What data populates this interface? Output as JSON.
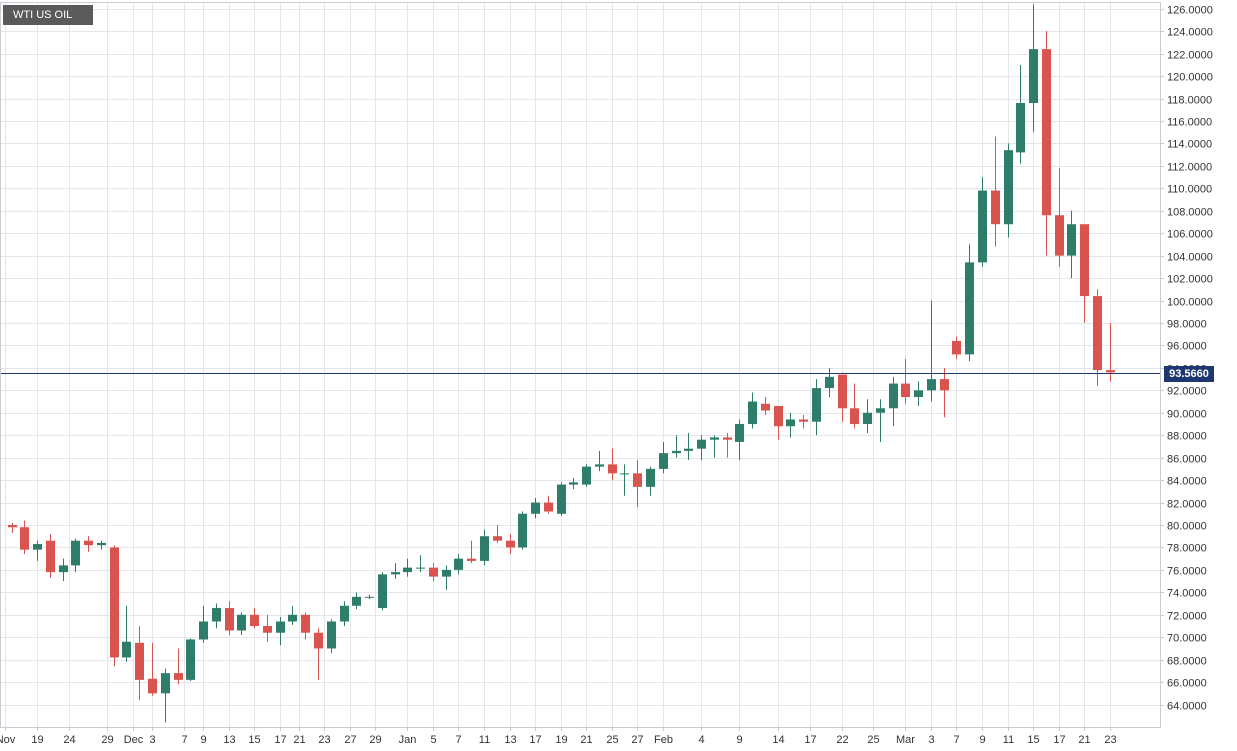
{
  "instrument": "WTI US OIL",
  "current_price": "93.5660",
  "colors": {
    "up": "#2e7d6b",
    "down": "#d9534f",
    "grid": "#e4e6eb",
    "price_line": "#1f3770",
    "axis": "#c8ccd4"
  },
  "chart_data": {
    "type": "candlestick",
    "title": "WTI US OIL",
    "ylim": [
      62.0,
      126.6
    ],
    "yticks": [
      "64.0000",
      "66.0000",
      "68.0000",
      "70.0000",
      "72.0000",
      "74.0000",
      "76.0000",
      "78.0000",
      "80.0000",
      "82.0000",
      "84.0000",
      "86.0000",
      "88.0000",
      "90.0000",
      "92.0000",
      "94.0000",
      "96.0000",
      "98.0000",
      "100.0000",
      "102.0000",
      "104.0000",
      "106.0000",
      "108.0000",
      "110.0000",
      "112.0000",
      "114.0000",
      "116.0000",
      "118.0000",
      "120.0000",
      "122.0000",
      "124.0000",
      "126.0000"
    ],
    "xticks": [
      "Nov",
      "19",
      "24",
      "29",
      "Dec",
      "3",
      "7",
      "9",
      "13",
      "15",
      "17",
      "21",
      "23",
      "27",
      "29",
      "Jan",
      "5",
      "7",
      "11",
      "13",
      "17",
      "19",
      "21",
      "25",
      "27",
      "Feb",
      "4",
      "9",
      "14",
      "17",
      "22",
      "25",
      "Mar",
      "3",
      "7",
      "9",
      "11",
      "15",
      "17",
      "21",
      "23"
    ],
    "xtick_index": [
      -0.5,
      2,
      4.5,
      7.5,
      9.5,
      11,
      13.5,
      15,
      17,
      19,
      21,
      22.5,
      24.5,
      26.5,
      28.5,
      31,
      33,
      35,
      37,
      39,
      41,
      43,
      45,
      47,
      49,
      51,
      54,
      57,
      60,
      62.5,
      65,
      67.5,
      70,
      72,
      74,
      76,
      78,
      80,
      82,
      84,
      86
    ],
    "last_price": 93.566,
    "candles": [
      {
        "o": 80.0,
        "h": 80.2,
        "l": 79.3,
        "c": 79.8
      },
      {
        "o": 79.8,
        "h": 80.4,
        "l": 77.4,
        "c": 77.8
      },
      {
        "o": 77.8,
        "h": 78.6,
        "l": 76.8,
        "c": 78.3
      },
      {
        "o": 78.6,
        "h": 79.2,
        "l": 75.3,
        "c": 75.8
      },
      {
        "o": 75.8,
        "h": 77.0,
        "l": 75.0,
        "c": 76.4
      },
      {
        "o": 76.4,
        "h": 78.8,
        "l": 75.8,
        "c": 78.6
      },
      {
        "o": 78.6,
        "h": 79.0,
        "l": 77.6,
        "c": 78.2
      },
      {
        "o": 78.2,
        "h": 78.6,
        "l": 77.8,
        "c": 78.4
      },
      {
        "o": 78.0,
        "h": 78.2,
        "l": 67.4,
        "c": 68.2
      },
      {
        "o": 68.2,
        "h": 72.8,
        "l": 67.8,
        "c": 69.6
      },
      {
        "o": 69.5,
        "h": 71.0,
        "l": 64.4,
        "c": 66.2
      },
      {
        "o": 66.3,
        "h": 69.5,
        "l": 64.8,
        "c": 65.0
      },
      {
        "o": 65.0,
        "h": 67.2,
        "l": 62.4,
        "c": 66.8
      },
      {
        "o": 66.8,
        "h": 69.0,
        "l": 65.8,
        "c": 66.2
      },
      {
        "o": 66.2,
        "h": 69.9,
        "l": 66.1,
        "c": 69.8
      },
      {
        "o": 69.8,
        "h": 72.8,
        "l": 69.5,
        "c": 71.4
      },
      {
        "o": 71.4,
        "h": 73.0,
        "l": 70.8,
        "c": 72.6
      },
      {
        "o": 72.6,
        "h": 73.2,
        "l": 70.2,
        "c": 70.6
      },
      {
        "o": 70.6,
        "h": 72.2,
        "l": 70.2,
        "c": 72.0
      },
      {
        "o": 72.0,
        "h": 72.6,
        "l": 70.8,
        "c": 71.0
      },
      {
        "o": 71.0,
        "h": 72.0,
        "l": 69.6,
        "c": 70.4
      },
      {
        "o": 70.4,
        "h": 71.8,
        "l": 69.3,
        "c": 71.4
      },
      {
        "o": 71.4,
        "h": 72.8,
        "l": 71.1,
        "c": 72.0
      },
      {
        "o": 72.0,
        "h": 72.2,
        "l": 69.8,
        "c": 70.4
      },
      {
        "o": 70.4,
        "h": 70.8,
        "l": 66.2,
        "c": 69.0
      },
      {
        "o": 69.0,
        "h": 71.6,
        "l": 68.6,
        "c": 71.4
      },
      {
        "o": 71.4,
        "h": 73.2,
        "l": 71.0,
        "c": 72.8
      },
      {
        "o": 72.8,
        "h": 74.0,
        "l": 72.5,
        "c": 73.6
      },
      {
        "o": 73.6,
        "h": 73.8,
        "l": 73.4,
        "c": 73.6
      },
      {
        "o": 72.6,
        "h": 75.8,
        "l": 72.4,
        "c": 75.6
      },
      {
        "o": 75.6,
        "h": 76.6,
        "l": 75.2,
        "c": 75.8
      },
      {
        "o": 75.8,
        "h": 77.0,
        "l": 75.4,
        "c": 76.2
      },
      {
        "o": 76.2,
        "h": 77.3,
        "l": 75.8,
        "c": 76.2
      },
      {
        "o": 76.2,
        "h": 76.6,
        "l": 75.0,
        "c": 75.4
      },
      {
        "o": 75.4,
        "h": 76.4,
        "l": 74.2,
        "c": 76.0
      },
      {
        "o": 76.0,
        "h": 77.4,
        "l": 75.6,
        "c": 77.0
      },
      {
        "o": 77.0,
        "h": 78.6,
        "l": 76.6,
        "c": 76.8
      },
      {
        "o": 76.8,
        "h": 79.6,
        "l": 76.4,
        "c": 79.0
      },
      {
        "o": 79.0,
        "h": 80.0,
        "l": 78.4,
        "c": 78.6
      },
      {
        "o": 78.6,
        "h": 79.2,
        "l": 77.4,
        "c": 78.0
      },
      {
        "o": 78.0,
        "h": 81.2,
        "l": 77.8,
        "c": 81.0
      },
      {
        "o": 81.0,
        "h": 82.4,
        "l": 80.6,
        "c": 82.0
      },
      {
        "o": 82.0,
        "h": 82.6,
        "l": 81.0,
        "c": 81.2
      },
      {
        "o": 81.0,
        "h": 83.8,
        "l": 80.8,
        "c": 83.6
      },
      {
        "o": 83.6,
        "h": 84.2,
        "l": 83.2,
        "c": 83.8
      },
      {
        "o": 83.6,
        "h": 85.4,
        "l": 83.4,
        "c": 85.2
      },
      {
        "o": 85.2,
        "h": 86.6,
        "l": 84.8,
        "c": 85.4
      },
      {
        "o": 85.4,
        "h": 86.8,
        "l": 84.0,
        "c": 84.6
      },
      {
        "o": 84.6,
        "h": 85.4,
        "l": 82.6,
        "c": 84.6
      },
      {
        "o": 84.6,
        "h": 85.8,
        "l": 81.6,
        "c": 83.4
      },
      {
        "o": 83.4,
        "h": 85.2,
        "l": 82.6,
        "c": 85.0
      },
      {
        "o": 85.0,
        "h": 87.4,
        "l": 84.6,
        "c": 86.4
      },
      {
        "o": 86.4,
        "h": 88.0,
        "l": 86.0,
        "c": 86.6
      },
      {
        "o": 86.6,
        "h": 88.2,
        "l": 85.8,
        "c": 86.8
      },
      {
        "o": 86.8,
        "h": 88.0,
        "l": 85.8,
        "c": 87.6
      },
      {
        "o": 87.6,
        "h": 88.0,
        "l": 86.0,
        "c": 87.8
      },
      {
        "o": 87.8,
        "h": 88.2,
        "l": 86.0,
        "c": 87.6
      },
      {
        "o": 87.4,
        "h": 89.4,
        "l": 85.8,
        "c": 89.0
      },
      {
        "o": 89.0,
        "h": 91.8,
        "l": 88.6,
        "c": 91.0
      },
      {
        "o": 90.8,
        "h": 91.4,
        "l": 89.8,
        "c": 90.2
      },
      {
        "o": 90.6,
        "h": 90.6,
        "l": 87.6,
        "c": 88.8
      },
      {
        "o": 88.8,
        "h": 90.0,
        "l": 87.8,
        "c": 89.4
      },
      {
        "o": 89.4,
        "h": 89.8,
        "l": 88.6,
        "c": 89.2
      },
      {
        "o": 89.2,
        "h": 93.0,
        "l": 88.0,
        "c": 92.2
      },
      {
        "o": 92.2,
        "h": 94.0,
        "l": 91.4,
        "c": 93.2
      },
      {
        "o": 93.4,
        "h": 93.4,
        "l": 89.2,
        "c": 90.4
      },
      {
        "o": 90.4,
        "h": 92.6,
        "l": 88.6,
        "c": 89.0
      },
      {
        "o": 89.0,
        "h": 91.2,
        "l": 88.2,
        "c": 90.0
      },
      {
        "o": 90.0,
        "h": 91.2,
        "l": 87.4,
        "c": 90.4
      },
      {
        "o": 90.4,
        "h": 93.2,
        "l": 88.8,
        "c": 92.6
      },
      {
        "o": 92.6,
        "h": 94.8,
        "l": 90.8,
        "c": 91.4
      },
      {
        "o": 91.4,
        "h": 92.8,
        "l": 90.6,
        "c": 92.0
      },
      {
        "o": 92.0,
        "h": 100.0,
        "l": 91.0,
        "c": 93.0
      },
      {
        "o": 93.0,
        "h": 94.0,
        "l": 89.6,
        "c": 92.0
      },
      {
        "o": 96.4,
        "h": 96.8,
        "l": 94.8,
        "c": 95.2
      },
      {
        "o": 95.2,
        "h": 105.0,
        "l": 94.6,
        "c": 103.4
      },
      {
        "o": 103.4,
        "h": 111.0,
        "l": 103.0,
        "c": 109.8
      },
      {
        "o": 109.8,
        "h": 114.6,
        "l": 104.8,
        "c": 106.8
      },
      {
        "o": 106.8,
        "h": 114.0,
        "l": 105.6,
        "c": 113.4
      },
      {
        "o": 113.2,
        "h": 121.0,
        "l": 112.2,
        "c": 117.6
      },
      {
        "o": 117.6,
        "h": 126.4,
        "l": 115.0,
        "c": 122.4
      },
      {
        "o": 122.4,
        "h": 124.0,
        "l": 104.0,
        "c": 107.6
      },
      {
        "o": 107.6,
        "h": 111.8,
        "l": 103.0,
        "c": 104.0
      },
      {
        "o": 104.0,
        "h": 108.0,
        "l": 102.0,
        "c": 106.8
      },
      {
        "o": 106.8,
        "h": 106.8,
        "l": 98.0,
        "c": 100.4
      },
      {
        "o": 100.4,
        "h": 101.0,
        "l": 92.4,
        "c": 93.8
      },
      {
        "o": 93.8,
        "h": 98.0,
        "l": 92.8,
        "c": 93.6
      }
    ]
  }
}
